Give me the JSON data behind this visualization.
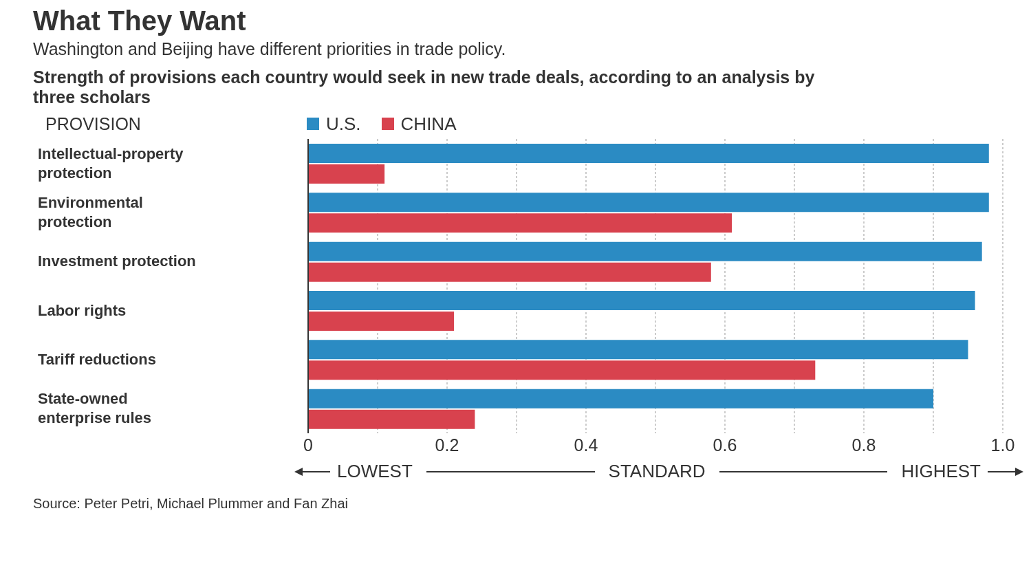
{
  "chart_data": {
    "type": "bar",
    "orientation": "horizontal",
    "title": "What They Want",
    "subtitle": "Washington and Beijing have different priorities in trade policy.",
    "annotations": [
      "Strength of provisions each country would seek in new trade deals, according to an analysis by three scholars",
      "LOWEST",
      "HIGHEST",
      "Source: Peter Petri, Michael Plummer and Fan Zhai"
    ],
    "ylabel": "PROVISION",
    "xlabel": "STANDARD",
    "categories": [
      "Intellectual-property protection",
      "Environmental protection",
      "Investment protection",
      "Labor rights",
      "Tariff reductions",
      "State-owned enterprise rules"
    ],
    "series": [
      {
        "name": "U.S.",
        "color": "#2b8bc3",
        "values": [
          0.98,
          0.98,
          0.97,
          0.96,
          0.95,
          0.9
        ]
      },
      {
        "name": "CHINA",
        "color": "#d8424e",
        "values": [
          0.11,
          0.61,
          0.58,
          0.21,
          0.73,
          0.24
        ]
      }
    ],
    "xlim": [
      0,
      1
    ],
    "xticks": [
      0,
      {
        "value": 0.1,
        "label": null
      },
      0.2,
      {
        "value": 0.3,
        "label": null
      },
      0.4,
      {
        "value": 0.5,
        "label": null
      },
      0.6,
      {
        "value": 0.7,
        "label": null
      },
      0.8,
      {
        "value": 0.9,
        "label": null
      },
      {
        "value": 1,
        "label": "1.0"
      }
    ],
    "grid": "x",
    "legend": "top left"
  }
}
